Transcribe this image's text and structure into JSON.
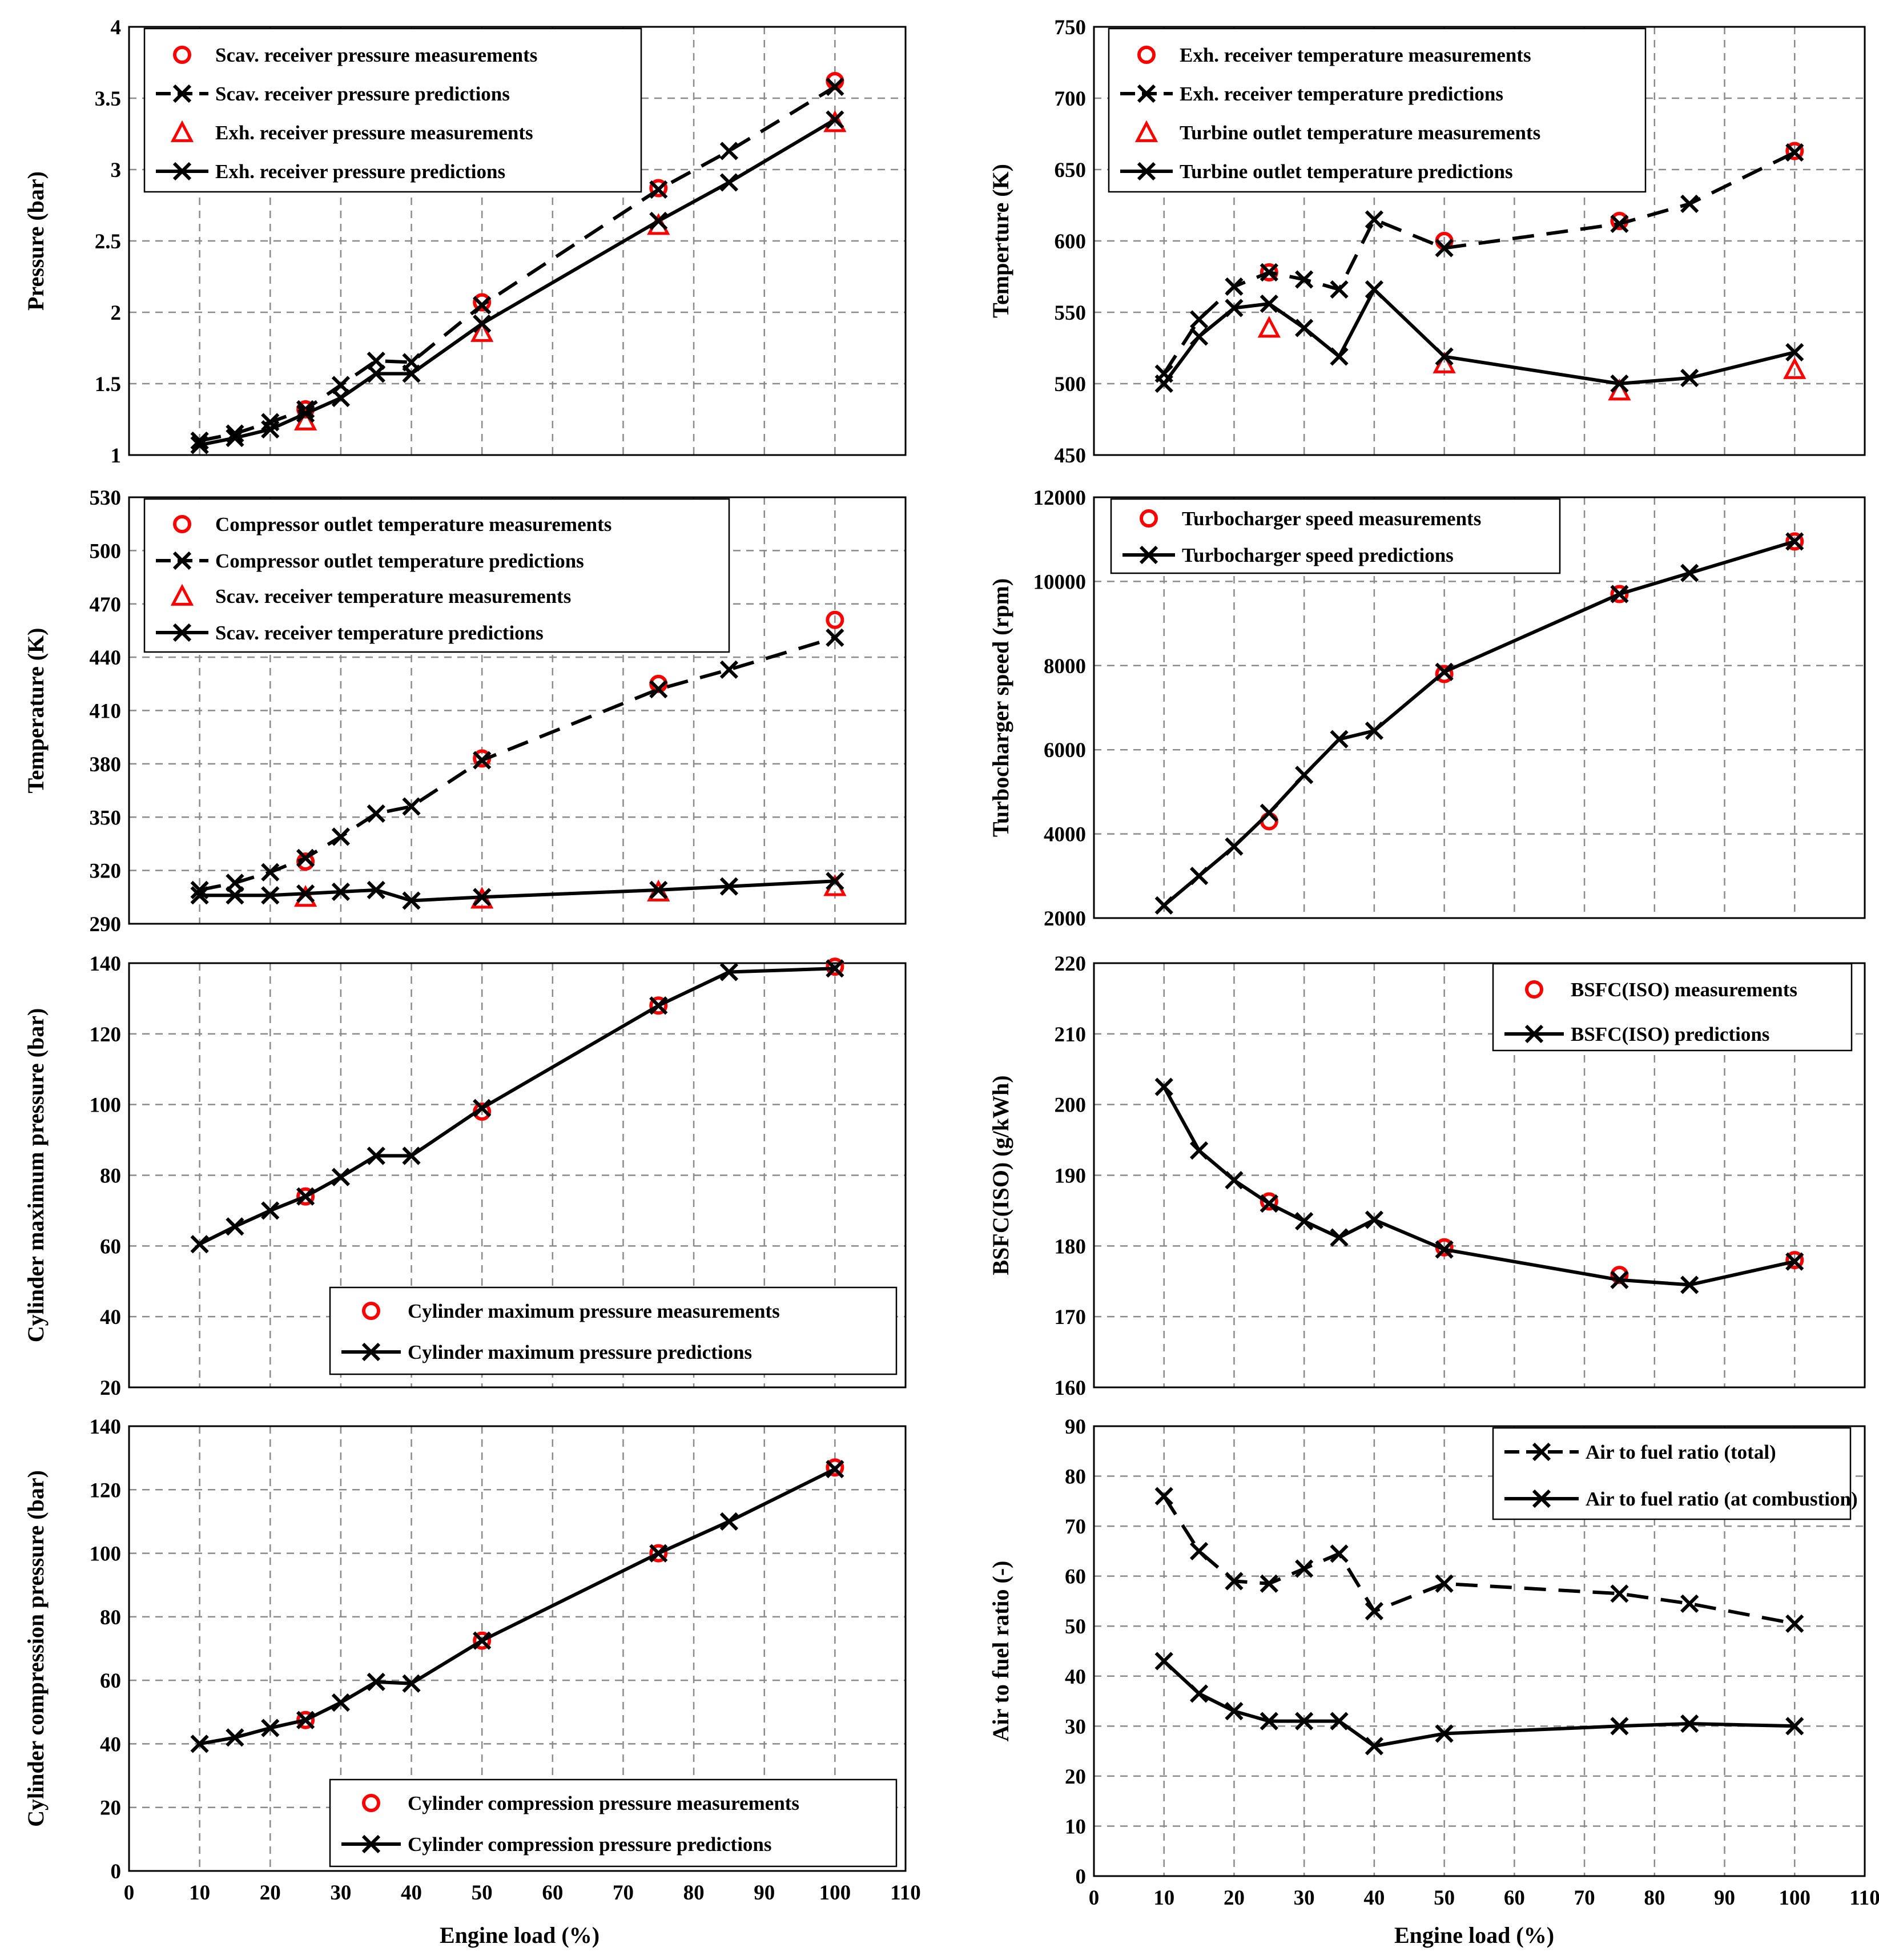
{
  "figure": {
    "xlabel": "Engine load (%)"
  },
  "chart_data": [
    {
      "id": "c1",
      "type": "line",
      "title": "",
      "xlabel": "",
      "ylabel": "Pressure (bar)",
      "xlim": [
        0,
        110
      ],
      "xticks": [
        0,
        10,
        20,
        30,
        40,
        50,
        60,
        70,
        80,
        90,
        100,
        110
      ],
      "show_xticks": false,
      "ylim": [
        1,
        4
      ],
      "yticks": [
        1,
        1.5,
        2,
        2.5,
        3,
        3.5,
        4
      ],
      "grid": true,
      "legend_position": "top-left",
      "series": [
        {
          "name": "Scav. receiver pressure measurements",
          "style": "meas-circle",
          "x": [
            25,
            50,
            75,
            100
          ],
          "y": [
            1.32,
            2.07,
            2.87,
            3.62
          ]
        },
        {
          "name": "Scav. receiver pressure predictions",
          "style": "pred-dashed",
          "x": [
            10,
            15,
            20,
            25,
            30,
            35,
            40,
            50,
            75,
            85,
            100
          ],
          "y": [
            1.1,
            1.15,
            1.23,
            1.32,
            1.49,
            1.66,
            1.65,
            2.05,
            2.86,
            3.13,
            3.58
          ]
        },
        {
          "name": "Exh. receiver pressure measurements",
          "style": "meas-triangle",
          "x": [
            25,
            50,
            75,
            100
          ],
          "y": [
            1.24,
            1.86,
            2.61,
            3.33
          ]
        },
        {
          "name": "Exh. receiver pressure predictions",
          "style": "pred-solid",
          "x": [
            10,
            15,
            20,
            25,
            30,
            35,
            40,
            50,
            75,
            85,
            100
          ],
          "y": [
            1.07,
            1.12,
            1.18,
            1.29,
            1.4,
            1.57,
            1.57,
            1.92,
            2.64,
            2.91,
            3.35
          ]
        }
      ]
    },
    {
      "id": "c2",
      "type": "line",
      "title": "",
      "xlabel": "",
      "ylabel": "Temperture (K)",
      "xlim": [
        0,
        110
      ],
      "xticks": [
        0,
        10,
        20,
        30,
        40,
        50,
        60,
        70,
        80,
        90,
        100,
        110
      ],
      "show_xticks": false,
      "ylim": [
        450,
        750
      ],
      "yticks": [
        450,
        500,
        550,
        600,
        650,
        700,
        750
      ],
      "grid": true,
      "legend_position": "top-left",
      "series": [
        {
          "name": "Exh. receiver temperature measurements",
          "style": "meas-circle",
          "x": [
            25,
            50,
            75,
            100
          ],
          "y": [
            578,
            600,
            614,
            663
          ]
        },
        {
          "name": "Exh. receiver temperature predictions",
          "style": "pred-dashed",
          "x": [
            10,
            15,
            20,
            25,
            30,
            35,
            40,
            50,
            75,
            85,
            100
          ],
          "y": [
            507,
            545,
            568,
            578,
            573,
            566,
            615,
            595,
            612,
            626,
            662
          ]
        },
        {
          "name": "Turbine outlet temperature measurements",
          "style": "meas-triangle",
          "x": [
            25,
            50,
            75,
            100
          ],
          "y": [
            539,
            514,
            495,
            510
          ]
        },
        {
          "name": "Turbine outlet temperature predictions",
          "style": "pred-solid",
          "x": [
            10,
            15,
            20,
            25,
            30,
            35,
            40,
            50,
            75,
            85,
            100
          ],
          "y": [
            500,
            533,
            553,
            556,
            539,
            519,
            566,
            519,
            500,
            504,
            522
          ]
        }
      ]
    },
    {
      "id": "c3",
      "type": "line",
      "title": "",
      "xlabel": "",
      "ylabel": "Temperature (K)",
      "xlim": [
        0,
        110
      ],
      "xticks": [
        0,
        10,
        20,
        30,
        40,
        50,
        60,
        70,
        80,
        90,
        100,
        110
      ],
      "show_xticks": false,
      "ylim": [
        290,
        530
      ],
      "yticks": [
        290,
        320,
        350,
        380,
        410,
        440,
        470,
        500,
        530
      ],
      "grid": true,
      "legend_position": "top-left",
      "series": [
        {
          "name": "Compressor outlet temperature measurements",
          "style": "meas-circle",
          "x": [
            25,
            50,
            75,
            100
          ],
          "y": [
            325,
            383,
            425,
            461
          ]
        },
        {
          "name": "Compressor outlet temperature predictions",
          "style": "pred-dashed",
          "x": [
            10,
            15,
            20,
            25,
            30,
            35,
            40,
            50,
            75,
            85,
            100
          ],
          "y": [
            309,
            313,
            319,
            327,
            339,
            352,
            356,
            382,
            422,
            433,
            451
          ]
        },
        {
          "name": "Scav. receiver temperature measurements",
          "style": "meas-triangle",
          "x": [
            25,
            50,
            75,
            100
          ],
          "y": [
            305,
            304,
            308,
            311
          ]
        },
        {
          "name": "Scav. receiver temperature predictions",
          "style": "pred-solid",
          "x": [
            10,
            15,
            20,
            25,
            30,
            35,
            40,
            50,
            75,
            85,
            100
          ],
          "y": [
            306,
            306,
            306,
            307,
            308,
            309,
            303,
            305,
            309,
            311,
            314
          ]
        }
      ]
    },
    {
      "id": "c4",
      "type": "line",
      "title": "",
      "xlabel": "",
      "ylabel": "Turbocharger  speed (rpm)",
      "xlim": [
        0,
        110
      ],
      "xticks": [
        0,
        10,
        20,
        30,
        40,
        50,
        60,
        70,
        80,
        90,
        100,
        110
      ],
      "show_xticks": false,
      "ylim": [
        2000,
        12000
      ],
      "yticks": [
        2000,
        4000,
        6000,
        8000,
        10000,
        12000
      ],
      "grid": true,
      "legend_position": "top-left",
      "series": [
        {
          "name": "Turbocharger speed measurements",
          "style": "meas-circle",
          "x": [
            25,
            50,
            75,
            100
          ],
          "y": [
            4300,
            7800,
            9700,
            10950
          ]
        },
        {
          "name": "Turbocharger speed predictions",
          "style": "pred-solid",
          "x": [
            10,
            15,
            20,
            25,
            30,
            35,
            40,
            50,
            75,
            85,
            100
          ],
          "y": [
            2300,
            3000,
            3700,
            4500,
            5400,
            6250,
            6450,
            7850,
            9700,
            10200,
            10950
          ]
        }
      ]
    },
    {
      "id": "c5",
      "type": "line",
      "title": "",
      "xlabel": "",
      "ylabel": "Cylinder  maximum pressure  (bar)",
      "xlim": [
        0,
        110
      ],
      "xticks": [
        0,
        10,
        20,
        30,
        40,
        50,
        60,
        70,
        80,
        90,
        100,
        110
      ],
      "show_xticks": false,
      "ylim": [
        20,
        140
      ],
      "yticks": [
        20,
        40,
        60,
        80,
        100,
        120,
        140
      ],
      "grid": true,
      "legend_position": "bottom-right",
      "series": [
        {
          "name": "Cylinder maximum pressure measurements",
          "style": "meas-circle",
          "x": [
            25,
            50,
            75,
            100
          ],
          "y": [
            74,
            98,
            128,
            139
          ]
        },
        {
          "name": "Cylinder maximum pressure predictions",
          "style": "pred-solid",
          "x": [
            10,
            15,
            20,
            25,
            30,
            35,
            40,
            50,
            75,
            85,
            100
          ],
          "y": [
            60.5,
            65.5,
            70,
            74,
            79.5,
            85.5,
            85.5,
            99,
            128,
            137.5,
            138.5
          ]
        }
      ]
    },
    {
      "id": "c6",
      "type": "line",
      "title": "",
      "xlabel": "",
      "ylabel": "BSFC(ISO) (g/kWh)",
      "xlim": [
        0,
        110
      ],
      "xticks": [
        0,
        10,
        20,
        30,
        40,
        50,
        60,
        70,
        80,
        90,
        100,
        110
      ],
      "show_xticks": false,
      "ylim": [
        160,
        220
      ],
      "yticks": [
        160,
        170,
        180,
        190,
        200,
        210,
        220
      ],
      "grid": true,
      "legend_position": "top-right",
      "series": [
        {
          "name": "BSFC(ISO) measurements",
          "style": "meas-circle",
          "x": [
            25,
            50,
            75,
            100
          ],
          "y": [
            186.3,
            179.8,
            175.9,
            178.0
          ]
        },
        {
          "name": "BSFC(ISO) predictions",
          "style": "pred-solid",
          "x": [
            10,
            15,
            20,
            25,
            30,
            35,
            40,
            50,
            75,
            85,
            100
          ],
          "y": [
            202.5,
            193.5,
            189.3,
            186.0,
            183.5,
            181.2,
            183.7,
            179.5,
            175.2,
            174.5,
            177.8
          ]
        }
      ]
    },
    {
      "id": "c7",
      "type": "line",
      "title": "",
      "xlabel": "Engine load (%)",
      "ylabel": "Cylinder  compression pressure  (bar)",
      "xlim": [
        0,
        110
      ],
      "xticks": [
        0,
        10,
        20,
        30,
        40,
        50,
        60,
        70,
        80,
        90,
        100,
        110
      ],
      "show_xticks": true,
      "ylim": [
        0,
        140
      ],
      "yticks": [
        0,
        20,
        40,
        60,
        80,
        100,
        120,
        140
      ],
      "grid": true,
      "legend_position": "bottom-right",
      "series": [
        {
          "name": "Cylinder compression pressure measurements",
          "style": "meas-circle",
          "x": [
            25,
            50,
            75,
            100
          ],
          "y": [
            47.5,
            72.5,
            100,
            127
          ]
        },
        {
          "name": "Cylinder compression pressure predictions",
          "style": "pred-solid",
          "x": [
            10,
            15,
            20,
            25,
            30,
            35,
            40,
            50,
            75,
            85,
            100
          ],
          "y": [
            40,
            42,
            45,
            47.5,
            53,
            59.5,
            59,
            72.5,
            100,
            110,
            126.5
          ]
        }
      ]
    },
    {
      "id": "c8",
      "type": "line",
      "title": "",
      "xlabel": "Engine load (%)",
      "ylabel": "Air to fuel ratio (-)",
      "xlim": [
        0,
        110
      ],
      "xticks": [
        0,
        10,
        20,
        30,
        40,
        50,
        60,
        70,
        80,
        90,
        100,
        110
      ],
      "show_xticks": true,
      "ylim": [
        0,
        90
      ],
      "yticks": [
        0,
        10,
        20,
        30,
        40,
        50,
        60,
        70,
        80,
        90
      ],
      "grid": true,
      "legend_position": "top-right",
      "series": [
        {
          "name": "Air to fuel ratio (total)",
          "style": "pred-dashed",
          "x": [
            10,
            15,
            20,
            25,
            30,
            35,
            40,
            50,
            75,
            85,
            100
          ],
          "y": [
            76,
            65,
            59,
            58.5,
            61.5,
            64.5,
            53,
            58.5,
            56.5,
            54.5,
            50.5
          ]
        },
        {
          "name": "Air to fuel ratio (at combustion)",
          "style": "pred-solid",
          "x": [
            10,
            15,
            20,
            25,
            30,
            35,
            40,
            50,
            75,
            85,
            100
          ],
          "y": [
            43,
            36.5,
            33,
            31,
            31,
            31,
            26,
            28.5,
            30,
            30.5,
            30
          ]
        }
      ]
    }
  ]
}
